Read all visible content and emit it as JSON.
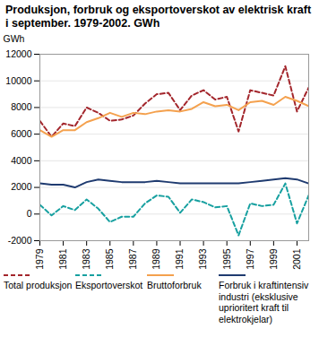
{
  "chart_data": {
    "type": "line",
    "title": "Produksjon, forbruk og eksportoverskot av elektrisk kraft i september. 1979-2002. GWh",
    "y_label": "GWh",
    "x": [
      1979,
      1980,
      1981,
      1982,
      1983,
      1984,
      1985,
      1986,
      1987,
      1988,
      1989,
      1990,
      1991,
      1992,
      1993,
      1994,
      1995,
      1996,
      1997,
      1998,
      1999,
      2000,
      2001,
      2002
    ],
    "xlim": [
      1979,
      2002
    ],
    "xticks": [
      1979,
      1981,
      1983,
      1985,
      1987,
      1989,
      1991,
      1993,
      1995,
      1997,
      1999,
      2001
    ],
    "ylim": [
      -2000,
      12000
    ],
    "yticks": [
      -2000,
      0,
      2000,
      4000,
      6000,
      8000,
      10000,
      12000
    ],
    "grid": true,
    "series": [
      {
        "name": "Total produksjon",
        "color": "#a3262c",
        "line_style": "dashed",
        "values": [
          7000,
          5800,
          6800,
          6600,
          8000,
          7600,
          7000,
          7100,
          7400,
          8300,
          9000,
          9100,
          7800,
          8900,
          9300,
          8600,
          8800,
          6200,
          9300,
          9100,
          8900,
          11100,
          7700,
          9500
        ]
      },
      {
        "name": "Eksportoverskot",
        "color": "#17a0a0",
        "line_style": "dashed",
        "values": [
          700,
          -100,
          600,
          300,
          1100,
          400,
          -600,
          -200,
          -200,
          800,
          1400,
          1300,
          100,
          1100,
          900,
          500,
          600,
          -1600,
          800,
          600,
          700,
          2300,
          -700,
          1400
        ]
      },
      {
        "name": "Bruttoforbruk",
        "color": "#f4a14e",
        "line_style": "solid",
        "values": [
          6300,
          5800,
          6300,
          6300,
          6900,
          7200,
          7600,
          7300,
          7600,
          7500,
          7700,
          7800,
          7700,
          7900,
          8400,
          8100,
          8200,
          7800,
          8400,
          8500,
          8200,
          8800,
          8500,
          8100
        ]
      },
      {
        "name": "Forbruk i kraftintensiv industri (eksklusive uprioritert kraft til elektrokjelar)",
        "color": "#1f3b70",
        "line_style": "solid",
        "values": [
          2300,
          2200,
          2200,
          2000,
          2400,
          2600,
          2500,
          2400,
          2400,
          2400,
          2500,
          2400,
          2300,
          2300,
          2300,
          2300,
          2300,
          2300,
          2400,
          2500,
          2600,
          2700,
          2600,
          2300
        ]
      }
    ]
  }
}
